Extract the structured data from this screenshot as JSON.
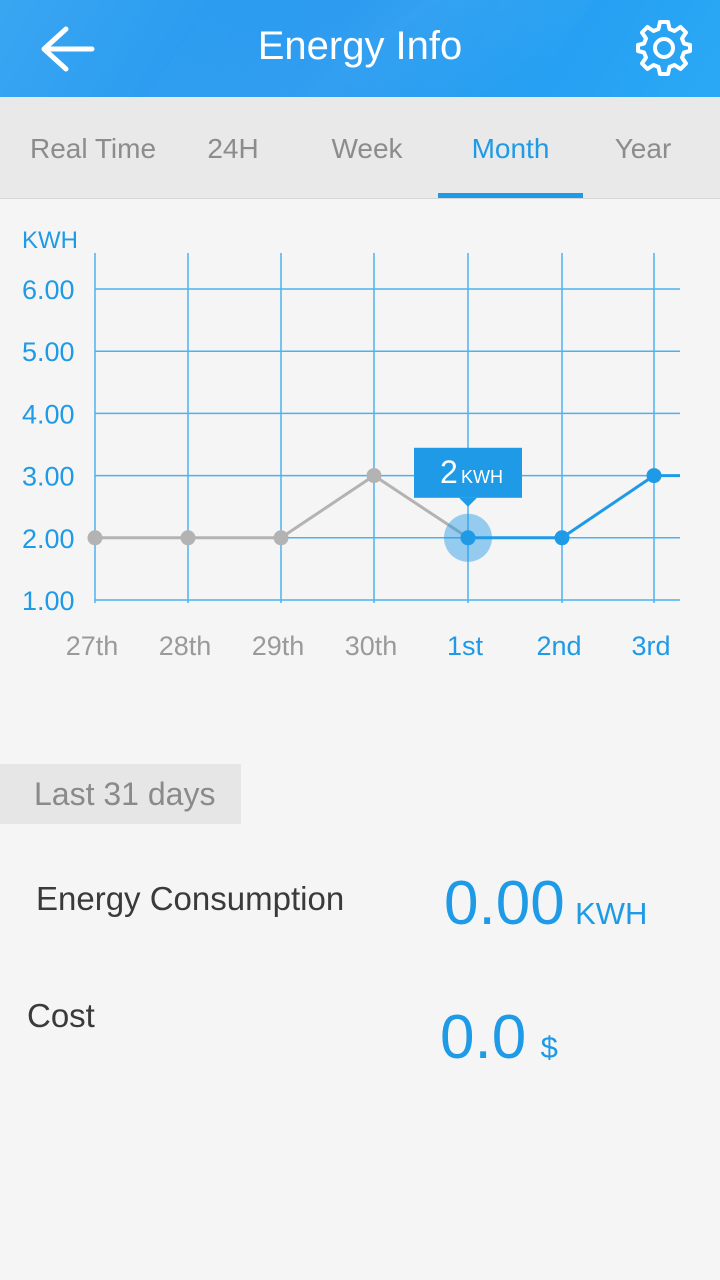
{
  "header": {
    "title": "Energy Info"
  },
  "tabs": [
    {
      "label": "Real Time",
      "active": false
    },
    {
      "label": "24H",
      "active": false
    },
    {
      "label": "Week",
      "active": false
    },
    {
      "label": "Month",
      "active": true
    },
    {
      "label": "Year",
      "active": false
    }
  ],
  "chart_data": {
    "type": "line",
    "ylabel": "KWH",
    "ylim": [
      1,
      6
    ],
    "yticks": [
      "6.00",
      "5.00",
      "4.00",
      "3.00",
      "2.00",
      "1.00"
    ],
    "categories": [
      "27th",
      "28th",
      "29th",
      "30th",
      "1st",
      "2nd",
      "3rd"
    ],
    "values": [
      2,
      2,
      2,
      3,
      2,
      2,
      3
    ],
    "highlight_index": 4,
    "tooltip": {
      "value": "2",
      "unit": "KWH"
    },
    "colors": {
      "past": "#b3b3b3",
      "current": "#1e9ae6",
      "grid": "#4cb2ef"
    }
  },
  "summary": {
    "period_label": "Last 31 days",
    "energy_label": "Energy Consumption",
    "energy_value": "0.00",
    "energy_unit": "KWH",
    "cost_label": "Cost",
    "cost_value": "0.0",
    "cost_unit": "$"
  }
}
